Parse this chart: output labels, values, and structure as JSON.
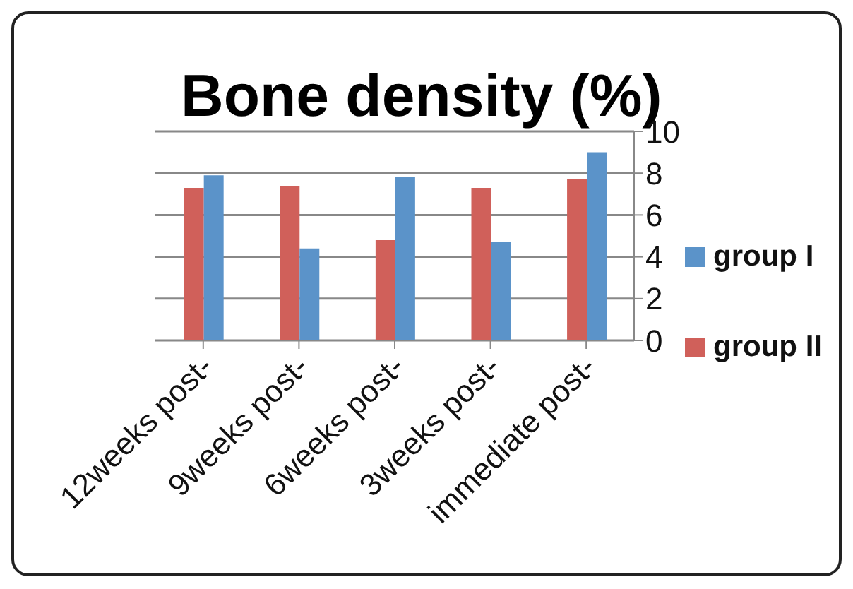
{
  "chart_data": {
    "type": "bar",
    "title": "Bone density (%)",
    "categories": [
      "12weeks post-",
      "9weeks post-",
      "6weeks post-",
      "3weeks post-",
      "immediate post-"
    ],
    "series": [
      {
        "name": "group II",
        "color": "#d0605a",
        "values": [
          7.3,
          7.4,
          4.8,
          7.3,
          7.7
        ]
      },
      {
        "name": "group I",
        "color": "#5b93c9",
        "values": [
          7.9,
          4.4,
          7.8,
          4.7,
          9.0
        ]
      }
    ],
    "ylim": [
      0,
      10
    ],
    "yticks": [
      0,
      2,
      4,
      6,
      8,
      10
    ],
    "grid": "y",
    "legend": "right"
  }
}
